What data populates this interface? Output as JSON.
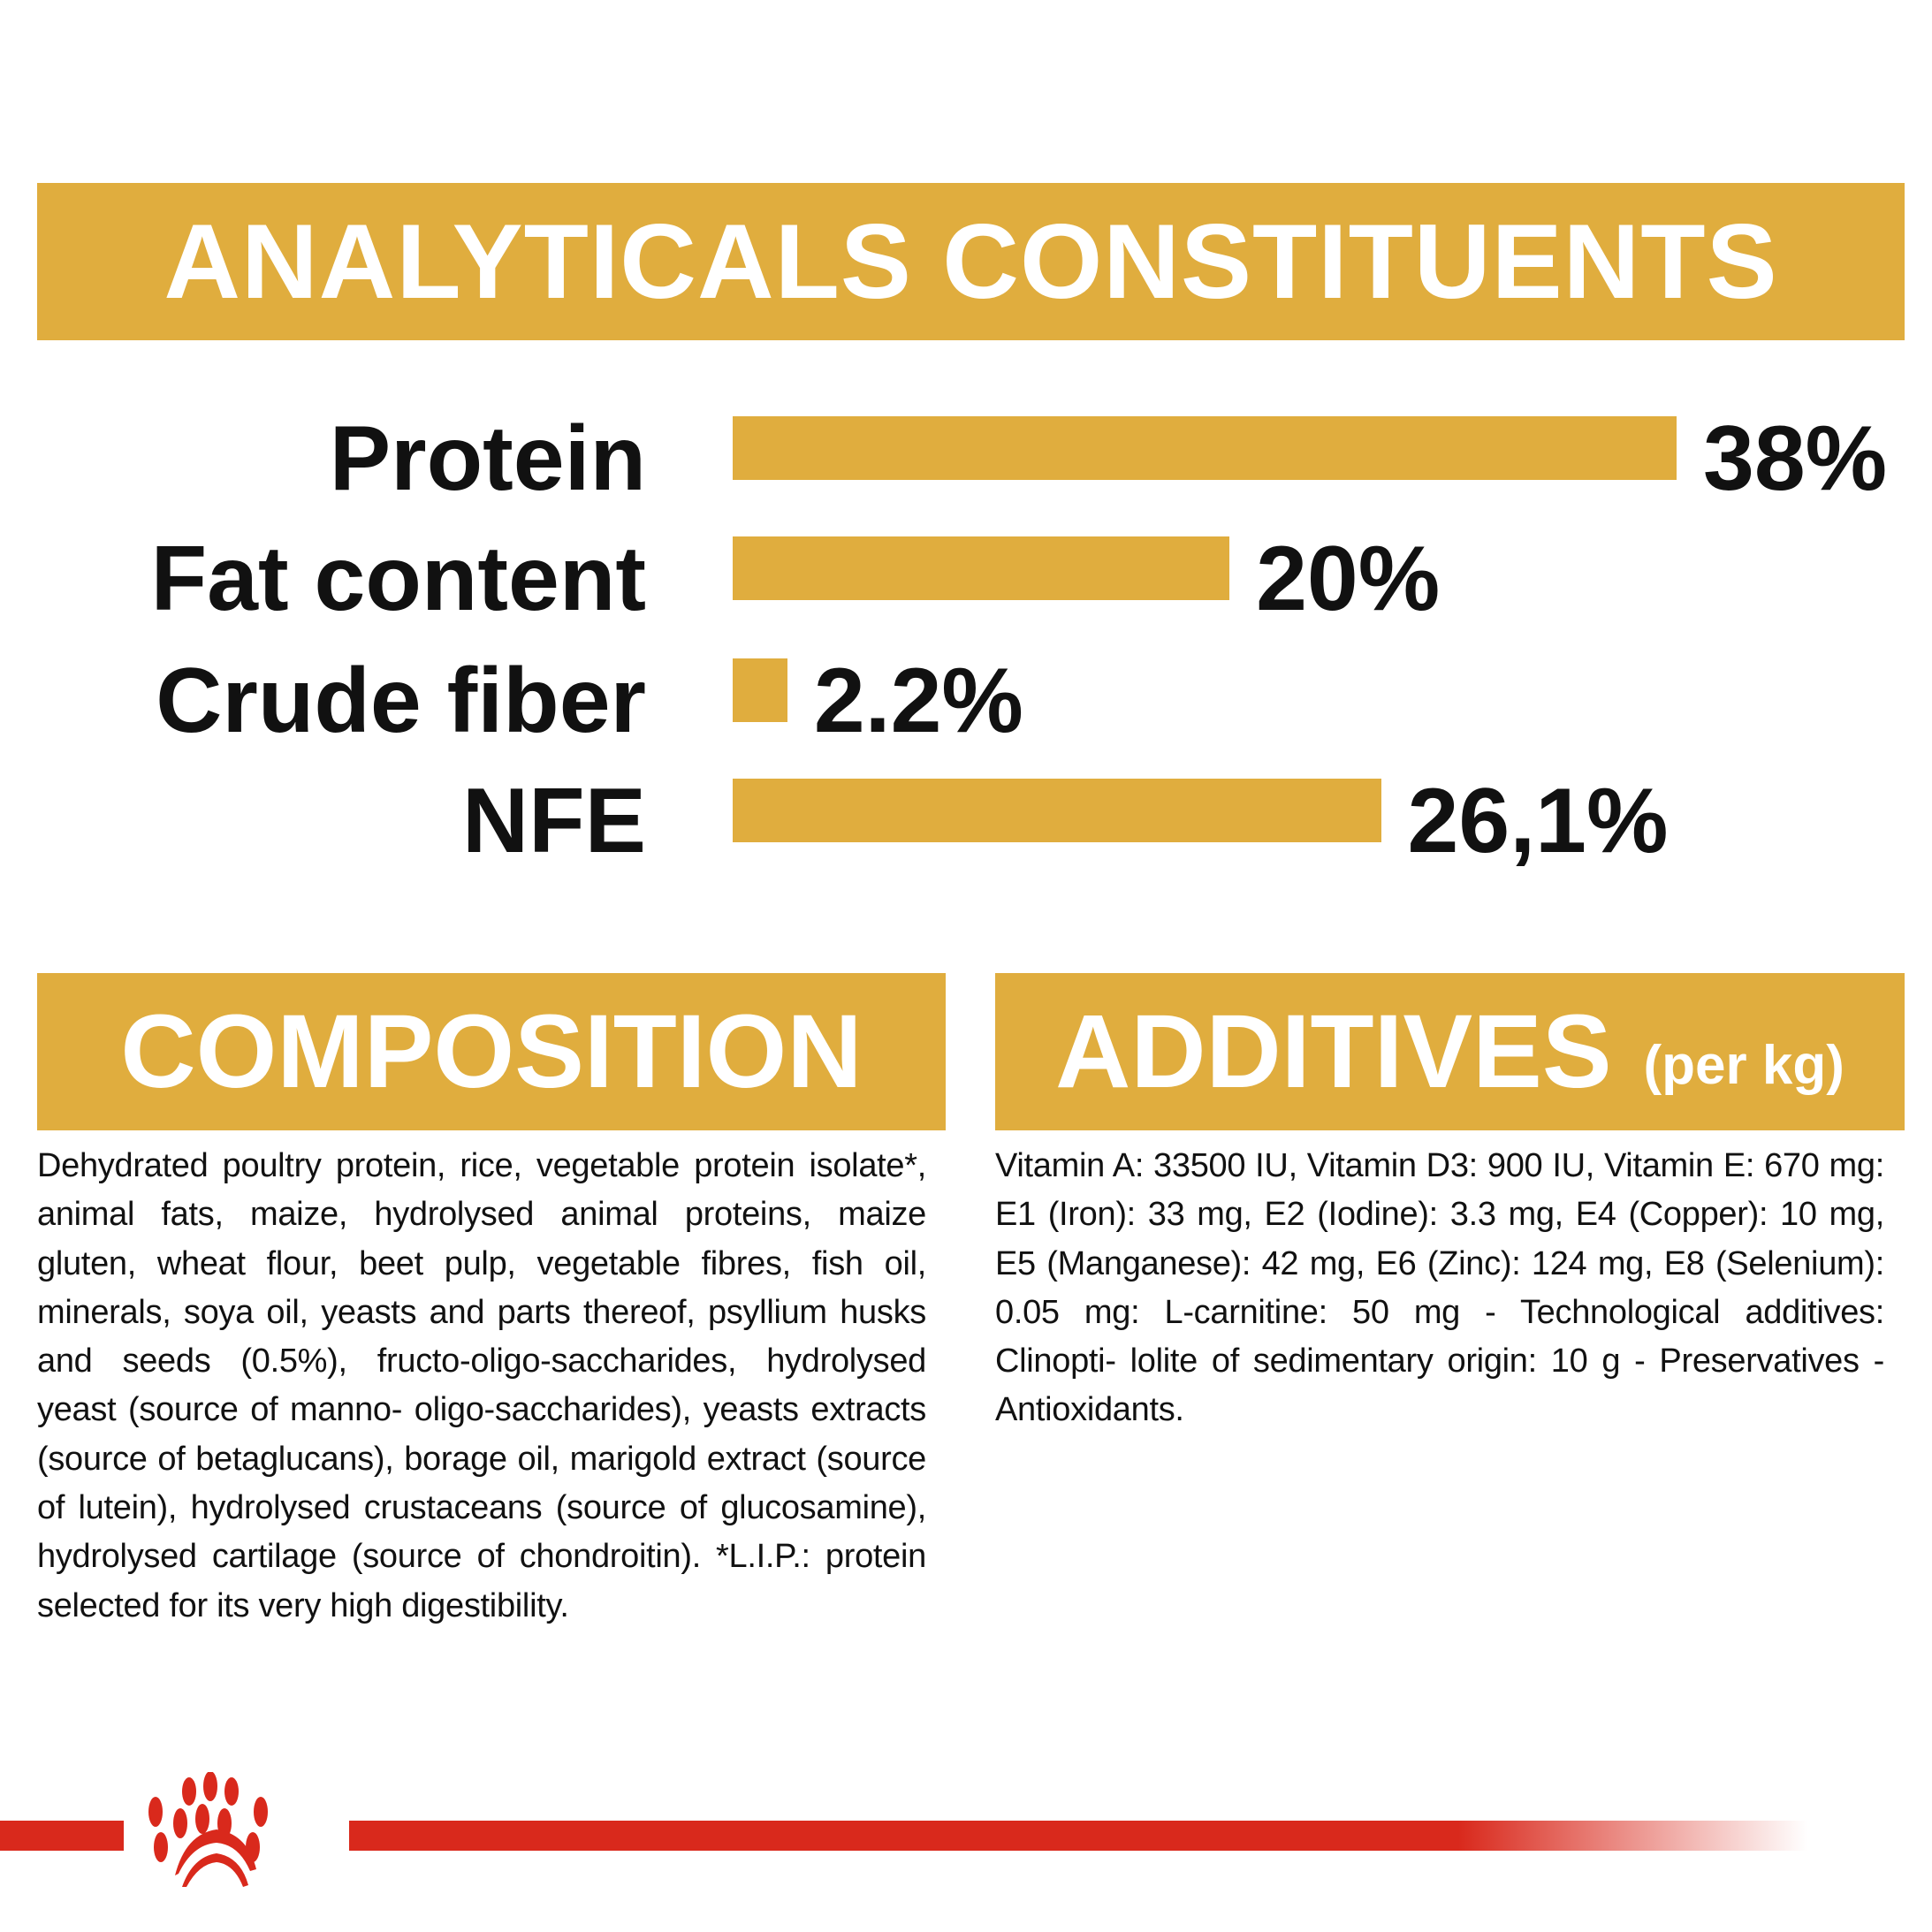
{
  "colors": {
    "accent": "#e0ad3e",
    "brand_red": "#d9291c"
  },
  "analytical": {
    "title": "ANALYTICALS CONSTITUENTS",
    "items": [
      {
        "label": "Protein",
        "value_text": "38%",
        "value": 38
      },
      {
        "label": "Fat content",
        "value_text": "20%",
        "value": 20
      },
      {
        "label": "Crude fiber",
        "value_text": "2.2%",
        "value": 2.2
      },
      {
        "label": "NFE",
        "value_text": "26,1%",
        "value": 26.1
      }
    ]
  },
  "composition": {
    "title": "COMPOSITION",
    "text": "Dehydrated poultry protein, rice, vegetable protein isolate*, animal fats, maize, hydrolysed animal proteins, maize gluten, wheat flour, beet pulp, vegetable fibres, fish oil, minerals, soya oil, yeasts and parts thereof, psyllium husks and seeds (0.5%), fructo-oligo-saccharides, hydrolysed yeast (source of manno- oligo-saccharides), yeasts extracts (source of betaglucans), borage oil, marigold extract (source of lutein), hydrolysed crustaceans (source of glucosamine), hydrolysed cartilage (source of chondroitin). *L.I.P.: protein selected for its very high digestibility."
  },
  "additives": {
    "title": "ADDITIVES",
    "subtitle": "(per kg)",
    "text": "Vitamin A: 33500 IU, Vitamin D3: 900 IU, Vitamin E: 670 mg: E1 (Iron): 33 mg, E2 (Iodine): 3.3 mg, E4 (Copper): 10 mg, E5 (Manganese): 42 mg, E6 (Zinc): 124 mg, E8 (Selenium): 0.05 mg: L-carnitine: 50 mg - Technological additives: Clinopti- lolite of sedimentary origin: 10 g - Preservatives - Antioxidants."
  },
  "footer": {
    "logo_icon": "royal-canin-crown-icon"
  }
}
